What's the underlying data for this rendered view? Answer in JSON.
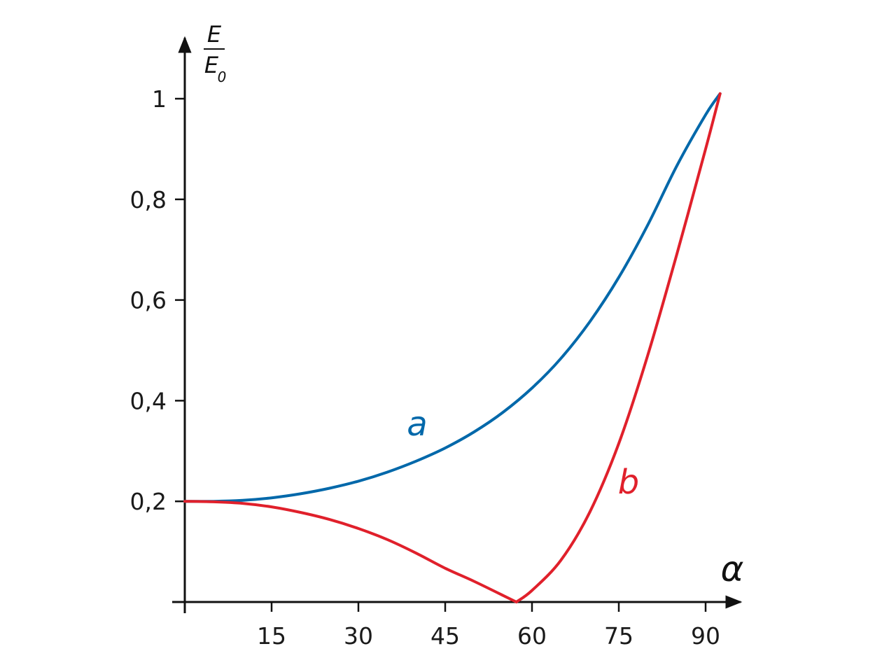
{
  "chart_data": {
    "type": "line",
    "title": "",
    "xlabel": "α",
    "ylabel": {
      "numerator": "E",
      "denominator": "E",
      "denominator_subscript": "0"
    },
    "xlim": [
      0,
      93
    ],
    "ylim": [
      0,
      1
    ],
    "x_ticks": [
      15,
      30,
      45,
      60,
      75,
      90
    ],
    "x_tick_labels": [
      "15",
      "30",
      "45",
      "60",
      "75",
      "90"
    ],
    "y_ticks": [
      0.2,
      0.4,
      0.6,
      0.8,
      1
    ],
    "y_tick_labels": [
      "0,2",
      "0,4",
      "0,6",
      "0,8",
      "1"
    ],
    "grid": false,
    "series": [
      {
        "name": "a",
        "color": "#0068aa",
        "x": [
          0,
          5,
          10,
          15,
          20,
          25,
          30,
          35,
          40,
          45,
          50,
          55,
          60,
          65,
          70,
          75,
          80,
          85,
          90,
          92.5
        ],
        "y": [
          0.2,
          0.2,
          0.202,
          0.207,
          0.215,
          0.226,
          0.24,
          0.258,
          0.28,
          0.306,
          0.338,
          0.377,
          0.425,
          0.484,
          0.557,
          0.645,
          0.749,
          0.866,
          0.968,
          1.01
        ]
      },
      {
        "name": "b",
        "color": "#e0202b",
        "x": [
          0,
          5,
          10,
          15,
          20,
          25,
          30,
          35,
          40,
          45,
          50,
          55,
          57.3,
          60,
          65,
          70,
          75,
          80,
          85,
          90,
          92.5
        ],
        "y": [
          0.2,
          0.199,
          0.196,
          0.189,
          0.178,
          0.164,
          0.146,
          0.124,
          0.097,
          0.067,
          0.041,
          0.013,
          0,
          0.023,
          0.083,
          0.179,
          0.315,
          0.49,
          0.69,
          0.9,
          1.01
        ]
      }
    ]
  }
}
